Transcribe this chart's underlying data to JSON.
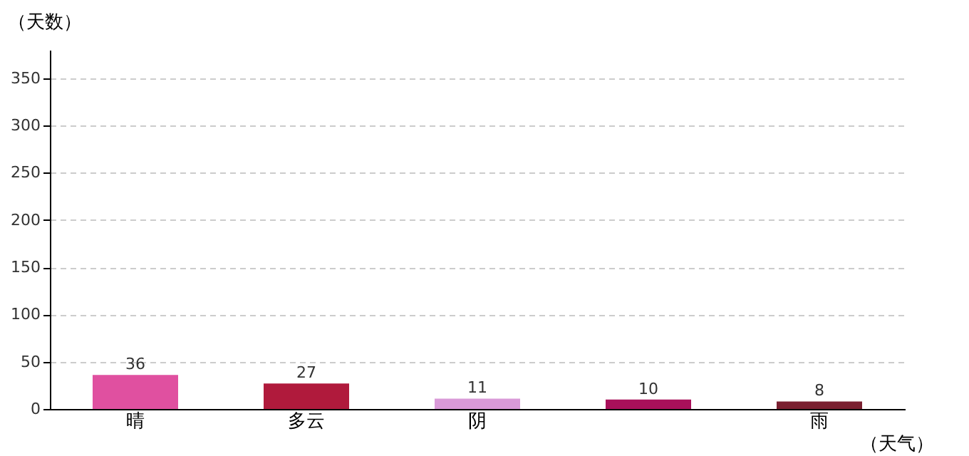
{
  "chart_data": {
    "type": "bar",
    "xlabel": "（天气）",
    "ylabel": "（天数）",
    "categories": [
      "晴",
      "多云",
      "阴",
      null,
      "雨"
    ],
    "values": [
      36,
      27,
      11,
      10,
      8
    ],
    "colors": [
      "#e050a0",
      "#b01a3c",
      "#d99ad8",
      "#a8105a",
      "#7a2030"
    ],
    "ylim": [
      0,
      380
    ],
    "yticks": [
      0,
      50,
      100,
      150,
      200,
      250,
      300,
      350
    ],
    "grid": "y",
    "data_labels": true
  }
}
